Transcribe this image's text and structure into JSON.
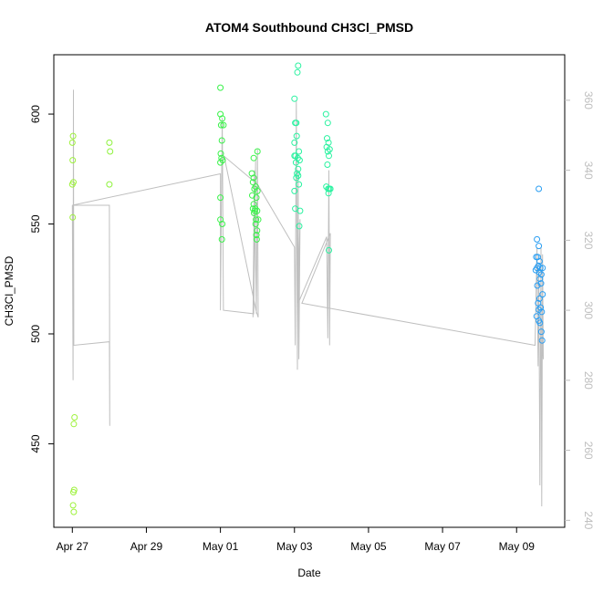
{
  "chart_data": {
    "type": "scatter",
    "title": "ATOM4 Southbound CH3Cl_PMSD",
    "xlabel": "Date",
    "ylabel": "CH3Cl_PMSD",
    "x_ticks": [
      "Apr 27",
      "Apr 29",
      "May 01",
      "May 03",
      "May 05",
      "May 07",
      "May 09"
    ],
    "x_tick_days": [
      0,
      2,
      4,
      6,
      8,
      10,
      12
    ],
    "xlim": [
      -0.5,
      13.3
    ],
    "ylim": [
      412,
      627
    ],
    "y_ticks": [
      450,
      500,
      550,
      600
    ],
    "y2lim": [
      238,
      373
    ],
    "y2_ticks": [
      240,
      260,
      280,
      300,
      320,
      340,
      360
    ],
    "grid": false,
    "legend": "none",
    "points": [
      {
        "d": 0.02,
        "v": 590,
        "c": "#9ef23c"
      },
      {
        "d": 0.0,
        "v": 587,
        "c": "#9ef23c"
      },
      {
        "d": 0.01,
        "v": 579,
        "c": "#9ef23c"
      },
      {
        "d": 0.03,
        "v": 569,
        "c": "#9ef23c"
      },
      {
        "d": 0.0,
        "v": 568,
        "c": "#9ef23c"
      },
      {
        "d": 0.01,
        "v": 553,
        "c": "#9ef23c"
      },
      {
        "d": 0.06,
        "v": 462,
        "c": "#9ef23c"
      },
      {
        "d": 0.04,
        "v": 459,
        "c": "#9ef23c"
      },
      {
        "d": 0.05,
        "v": 429,
        "c": "#9ef23c"
      },
      {
        "d": 0.03,
        "v": 428,
        "c": "#9ef23c"
      },
      {
        "d": 0.02,
        "v": 422,
        "c": "#9ef23c"
      },
      {
        "d": 0.04,
        "v": 419,
        "c": "#9ef23c"
      },
      {
        "d": 1.0,
        "v": 587,
        "c": "#8ef23c"
      },
      {
        "d": 1.02,
        "v": 583,
        "c": "#8ef23c"
      },
      {
        "d": 1.0,
        "v": 568,
        "c": "#8ef23c"
      },
      {
        "d": 4.0,
        "v": 612,
        "c": "#3af24a"
      },
      {
        "d": 4.0,
        "v": 600,
        "c": "#3af24a"
      },
      {
        "d": 4.05,
        "v": 598,
        "c": "#3af24a"
      },
      {
        "d": 4.02,
        "v": 595,
        "c": "#3af24a"
      },
      {
        "d": 4.08,
        "v": 595,
        "c": "#3af24a"
      },
      {
        "d": 4.04,
        "v": 588,
        "c": "#3af24a"
      },
      {
        "d": 4.01,
        "v": 582,
        "c": "#3af24a"
      },
      {
        "d": 4.03,
        "v": 580,
        "c": "#3af24a"
      },
      {
        "d": 4.06,
        "v": 579,
        "c": "#3af24a"
      },
      {
        "d": 4.0,
        "v": 578,
        "c": "#3af24a"
      },
      {
        "d": 4.0,
        "v": 562,
        "c": "#3af24a"
      },
      {
        "d": 4.0,
        "v": 552,
        "c": "#3af24a"
      },
      {
        "d": 4.05,
        "v": 550,
        "c": "#3af24a"
      },
      {
        "d": 4.04,
        "v": 543,
        "c": "#3af24a"
      },
      {
        "d": 4.85,
        "v": 573,
        "c": "#3af24a"
      },
      {
        "d": 4.9,
        "v": 571,
        "c": "#3af24a"
      },
      {
        "d": 4.88,
        "v": 569,
        "c": "#3af24a"
      },
      {
        "d": 4.95,
        "v": 567,
        "c": "#3af24a"
      },
      {
        "d": 4.92,
        "v": 566,
        "c": "#3af24a"
      },
      {
        "d": 5.0,
        "v": 565,
        "c": "#3af24a"
      },
      {
        "d": 4.86,
        "v": 563,
        "c": "#3af24a"
      },
      {
        "d": 4.97,
        "v": 562,
        "c": "#3af24a"
      },
      {
        "d": 4.9,
        "v": 559,
        "c": "#3af24a"
      },
      {
        "d": 4.94,
        "v": 557,
        "c": "#3af24a"
      },
      {
        "d": 4.88,
        "v": 557,
        "c": "#3af24a"
      },
      {
        "d": 4.93,
        "v": 556,
        "c": "#3af24a"
      },
      {
        "d": 4.99,
        "v": 556,
        "c": "#3af24a"
      },
      {
        "d": 4.91,
        "v": 555,
        "c": "#3af24a"
      },
      {
        "d": 4.96,
        "v": 552,
        "c": "#3af24a"
      },
      {
        "d": 5.02,
        "v": 552,
        "c": "#3af24a"
      },
      {
        "d": 4.95,
        "v": 550,
        "c": "#3af24a"
      },
      {
        "d": 4.99,
        "v": 547,
        "c": "#3af24a"
      },
      {
        "d": 4.97,
        "v": 545,
        "c": "#3af24a"
      },
      {
        "d": 4.98,
        "v": 543,
        "c": "#3af24a"
      },
      {
        "d": 5.0,
        "v": 583,
        "c": "#3af24a"
      },
      {
        "d": 4.9,
        "v": 580,
        "c": "#3af24a"
      },
      {
        "d": 6.1,
        "v": 622,
        "c": "#2af2a0"
      },
      {
        "d": 6.08,
        "v": 619,
        "c": "#2af2a0"
      },
      {
        "d": 6.0,
        "v": 607,
        "c": "#2af2a0"
      },
      {
        "d": 6.02,
        "v": 596,
        "c": "#2af2a0"
      },
      {
        "d": 6.05,
        "v": 596,
        "c": "#2af2a0"
      },
      {
        "d": 6.06,
        "v": 590,
        "c": "#2af2a0"
      },
      {
        "d": 6.0,
        "v": 587,
        "c": "#2af2a0"
      },
      {
        "d": 6.12,
        "v": 583,
        "c": "#2af2a0"
      },
      {
        "d": 6.0,
        "v": 581,
        "c": "#2af2a0"
      },
      {
        "d": 6.03,
        "v": 581,
        "c": "#2af2a0"
      },
      {
        "d": 6.09,
        "v": 580,
        "c": "#2af2a0"
      },
      {
        "d": 6.14,
        "v": 579,
        "c": "#2af2a0"
      },
      {
        "d": 6.04,
        "v": 578,
        "c": "#2af2a0"
      },
      {
        "d": 6.1,
        "v": 575,
        "c": "#2af2a0"
      },
      {
        "d": 6.07,
        "v": 573,
        "c": "#2af2a0"
      },
      {
        "d": 6.05,
        "v": 571,
        "c": "#2af2a0"
      },
      {
        "d": 6.1,
        "v": 572,
        "c": "#2af2a0"
      },
      {
        "d": 6.12,
        "v": 568,
        "c": "#2af2a0"
      },
      {
        "d": 6.0,
        "v": 565,
        "c": "#2af2a0"
      },
      {
        "d": 6.02,
        "v": 557,
        "c": "#2af2a0"
      },
      {
        "d": 6.15,
        "v": 556,
        "c": "#2af2a0"
      },
      {
        "d": 6.13,
        "v": 549,
        "c": "#2af2a0"
      },
      {
        "d": 6.85,
        "v": 600,
        "c": "#2af2a0"
      },
      {
        "d": 6.9,
        "v": 596,
        "c": "#2af2a0"
      },
      {
        "d": 6.88,
        "v": 589,
        "c": "#2af2a0"
      },
      {
        "d": 6.92,
        "v": 587,
        "c": "#2af2a0"
      },
      {
        "d": 6.87,
        "v": 585,
        "c": "#2af2a0"
      },
      {
        "d": 6.95,
        "v": 584,
        "c": "#2af2a0"
      },
      {
        "d": 6.9,
        "v": 583,
        "c": "#2af2a0"
      },
      {
        "d": 6.93,
        "v": 581,
        "c": "#2af2a0"
      },
      {
        "d": 6.89,
        "v": 577,
        "c": "#2af2a0"
      },
      {
        "d": 6.86,
        "v": 567,
        "c": "#2af2a0"
      },
      {
        "d": 6.91,
        "v": 566,
        "c": "#2af2a0"
      },
      {
        "d": 6.94,
        "v": 566,
        "c": "#2af2a0"
      },
      {
        "d": 6.97,
        "v": 566,
        "c": "#2af2a0"
      },
      {
        "d": 6.92,
        "v": 564,
        "c": "#2af2a0"
      },
      {
        "d": 6.93,
        "v": 538,
        "c": "#2af2a0"
      },
      {
        "d": 12.6,
        "v": 566,
        "c": "#2a9ef2"
      },
      {
        "d": 12.55,
        "v": 543,
        "c": "#2a9ef2"
      },
      {
        "d": 12.6,
        "v": 540,
        "c": "#2a9ef2"
      },
      {
        "d": 12.57,
        "v": 535,
        "c": "#2a9ef2"
      },
      {
        "d": 12.53,
        "v": 535,
        "c": "#2a9ef2"
      },
      {
        "d": 12.62,
        "v": 533,
        "c": "#2a9ef2"
      },
      {
        "d": 12.59,
        "v": 531,
        "c": "#2a9ef2"
      },
      {
        "d": 12.64,
        "v": 530,
        "c": "#2a9ef2"
      },
      {
        "d": 12.55,
        "v": 530,
        "c": "#2a9ef2"
      },
      {
        "d": 12.7,
        "v": 530,
        "c": "#2a9ef2"
      },
      {
        "d": 12.52,
        "v": 529,
        "c": "#2a9ef2"
      },
      {
        "d": 12.61,
        "v": 528,
        "c": "#2a9ef2"
      },
      {
        "d": 12.67,
        "v": 527,
        "c": "#2a9ef2"
      },
      {
        "d": 12.63,
        "v": 525,
        "c": "#2a9ef2"
      },
      {
        "d": 12.66,
        "v": 523,
        "c": "#2a9ef2"
      },
      {
        "d": 12.56,
        "v": 522,
        "c": "#2a9ef2"
      },
      {
        "d": 12.7,
        "v": 518,
        "c": "#2a9ef2"
      },
      {
        "d": 12.62,
        "v": 516,
        "c": "#2a9ef2"
      },
      {
        "d": 12.58,
        "v": 514,
        "c": "#2a9ef2"
      },
      {
        "d": 12.65,
        "v": 512,
        "c": "#2a9ef2"
      },
      {
        "d": 12.6,
        "v": 511,
        "c": "#2a9ef2"
      },
      {
        "d": 12.68,
        "v": 510,
        "c": "#2a9ef2"
      },
      {
        "d": 12.54,
        "v": 508,
        "c": "#2a9ef2"
      },
      {
        "d": 12.6,
        "v": 506,
        "c": "#2a9ef2"
      },
      {
        "d": 12.63,
        "v": 505,
        "c": "#2a9ef2"
      },
      {
        "d": 12.67,
        "v": 501,
        "c": "#2a9ef2"
      },
      {
        "d": 12.69,
        "v": 497,
        "c": "#2a9ef2"
      }
    ],
    "secondary_line": {
      "axis": "right",
      "color": "#bfbfbf",
      "points": [
        [
          0.0,
          330
        ],
        [
          0.02,
          280
        ],
        [
          0.03,
          363
        ],
        [
          0.04,
          290
        ],
        [
          1.0,
          291
        ],
        [
          1.01,
          267
        ],
        [
          1.0,
          330
        ],
        [
          0.0,
          330
        ],
        [
          4.0,
          339
        ],
        [
          4.0,
          300
        ],
        [
          4.05,
          355
        ],
        [
          4.08,
          300
        ],
        [
          4.9,
          299
        ],
        [
          4.95,
          343
        ],
        [
          4.88,
          298
        ],
        [
          4.92,
          340
        ],
        [
          4.97,
          299
        ],
        [
          5.0,
          346
        ],
        [
          5.02,
          298
        ],
        [
          4.96,
          300
        ],
        [
          4.1,
          344
        ],
        [
          5.0,
          336
        ],
        [
          6.0,
          318
        ],
        [
          6.02,
          290
        ],
        [
          6.05,
          360
        ],
        [
          6.08,
          283
        ],
        [
          6.1,
          340
        ],
        [
          6.12,
          286
        ],
        [
          6.15,
          326
        ],
        [
          6.1,
          302
        ],
        [
          6.87,
          321
        ],
        [
          6.9,
          292
        ],
        [
          6.93,
          340
        ],
        [
          6.95,
          290
        ],
        [
          6.97,
          322
        ],
        [
          6.2,
          302
        ],
        [
          12.5,
          290
        ],
        [
          12.55,
          318
        ],
        [
          12.58,
          284
        ],
        [
          12.6,
          312
        ],
        [
          12.63,
          250
        ],
        [
          12.66,
          318
        ],
        [
          12.68,
          244
        ],
        [
          12.7,
          316
        ],
        [
          12.72,
          286
        ],
        [
          12.69,
          295
        ]
      ]
    }
  }
}
